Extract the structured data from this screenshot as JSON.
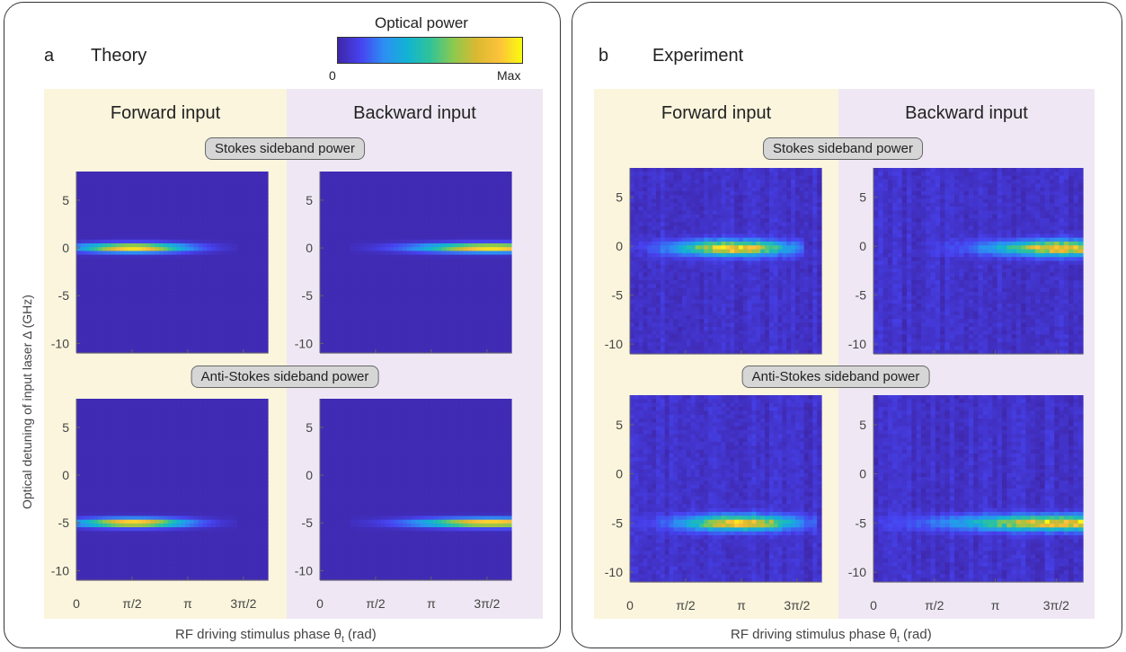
{
  "colorbar": {
    "title": "Optical power",
    "min_label": "0",
    "max_label": "Max"
  },
  "panels": [
    {
      "letter": "a",
      "title": "Theory",
      "forward_label": "Forward input",
      "backward_label": "Backward input",
      "stokes_label": "Stokes sideband power",
      "antistokes_label": "Anti-Stokes sideband power",
      "xlabel": "RF driving stimulus phase θ",
      "xlabel_sub": "t",
      "xlabel_unit": " (rad)"
    },
    {
      "letter": "b",
      "title": "Experiment",
      "forward_label": "Forward input",
      "backward_label": "Backward input",
      "stokes_label": "Stokes sideband power",
      "antistokes_label": "Anti-Stokes sideband power",
      "xlabel": "RF driving stimulus phase θ",
      "xlabel_sub": "t",
      "xlabel_unit": " (rad)"
    }
  ],
  "ylabel": "Optical detuning of input laser Δ (GHz)",
  "chart_data": [
    {
      "type": "heatmap",
      "panel": "a",
      "input": "forward",
      "sideband": "Stokes",
      "x_ticks": [],
      "y_ticks": [
        5,
        0,
        -5,
        -10
      ],
      "xlim": [
        0,
        5.4
      ],
      "ylim": [
        -11,
        8
      ],
      "band_center_ghz": 0,
      "peak_phase": 1.6,
      "extent_phase": [
        0,
        4.3
      ],
      "noise": false
    },
    {
      "type": "heatmap",
      "panel": "a",
      "input": "backward",
      "sideband": "Stokes",
      "x_ticks": [],
      "y_ticks": [
        5,
        0,
        -5,
        -10
      ],
      "xlim": [
        0,
        5.4
      ],
      "ylim": [
        -11,
        8
      ],
      "band_center_ghz": 0,
      "peak_phase": 4.85,
      "extent_phase": [
        1.2,
        5.4
      ],
      "noise": false
    },
    {
      "type": "heatmap",
      "panel": "a",
      "input": "forward",
      "sideband": "Anti-Stokes",
      "x_ticks": [
        "0",
        "π/2",
        "π",
        "3π/2"
      ],
      "y_ticks": [
        5,
        0,
        -5,
        -10
      ],
      "xlim": [
        0,
        5.4
      ],
      "ylim": [
        -11,
        8
      ],
      "band_center_ghz": -5,
      "peak_phase": 1.6,
      "extent_phase": [
        0,
        4.3
      ],
      "noise": false
    },
    {
      "type": "heatmap",
      "panel": "a",
      "input": "backward",
      "sideband": "Anti-Stokes",
      "x_ticks": [
        "0",
        "π/2",
        "π",
        "3π/2"
      ],
      "y_ticks": [
        5,
        0,
        -5,
        -10
      ],
      "xlim": [
        0,
        5.4
      ],
      "ylim": [
        -11,
        8
      ],
      "band_center_ghz": -5,
      "peak_phase": 4.85,
      "extent_phase": [
        1.2,
        5.4
      ],
      "noise": false
    },
    {
      "type": "heatmap",
      "panel": "b",
      "input": "forward",
      "sideband": "Stokes",
      "x_ticks": [],
      "y_ticks": [
        5,
        0,
        -5,
        -10
      ],
      "xlim": [
        0,
        5.4
      ],
      "ylim": [
        -11,
        8
      ],
      "band_center_ghz": -0.2,
      "peak_phase": 2.9,
      "extent_phase": [
        0,
        4.6
      ],
      "noise": true
    },
    {
      "type": "heatmap",
      "panel": "b",
      "input": "backward",
      "sideband": "Stokes",
      "x_ticks": [],
      "y_ticks": [
        5,
        0,
        -5,
        -10
      ],
      "xlim": [
        0,
        5.4
      ],
      "ylim": [
        -11,
        8
      ],
      "band_center_ghz": -0.2,
      "peak_phase": 4.9,
      "extent_phase": [
        1.6,
        5.4
      ],
      "noise": true
    },
    {
      "type": "heatmap",
      "panel": "b",
      "input": "forward",
      "sideband": "Anti-Stokes",
      "x_ticks": [
        "0",
        "π/2",
        "π",
        "3π/2"
      ],
      "y_ticks": [
        5,
        0,
        -5,
        -10
      ],
      "xlim": [
        0,
        5.4
      ],
      "ylim": [
        -11,
        8
      ],
      "band_center_ghz": -5,
      "peak_phase": 3.1,
      "extent_phase": [
        0.3,
        5.0
      ],
      "noise": true
    },
    {
      "type": "heatmap",
      "panel": "b",
      "input": "backward",
      "sideband": "Anti-Stokes",
      "x_ticks": [
        "0",
        "π/2",
        "π",
        "3π/2"
      ],
      "y_ticks": [
        5,
        0,
        -5,
        -10
      ],
      "xlim": [
        0,
        5.4
      ],
      "ylim": [
        -11,
        8
      ],
      "band_center_ghz": -5,
      "peak_phase": 4.9,
      "extent_phase": [
        0,
        5.4
      ],
      "noise": true
    }
  ]
}
